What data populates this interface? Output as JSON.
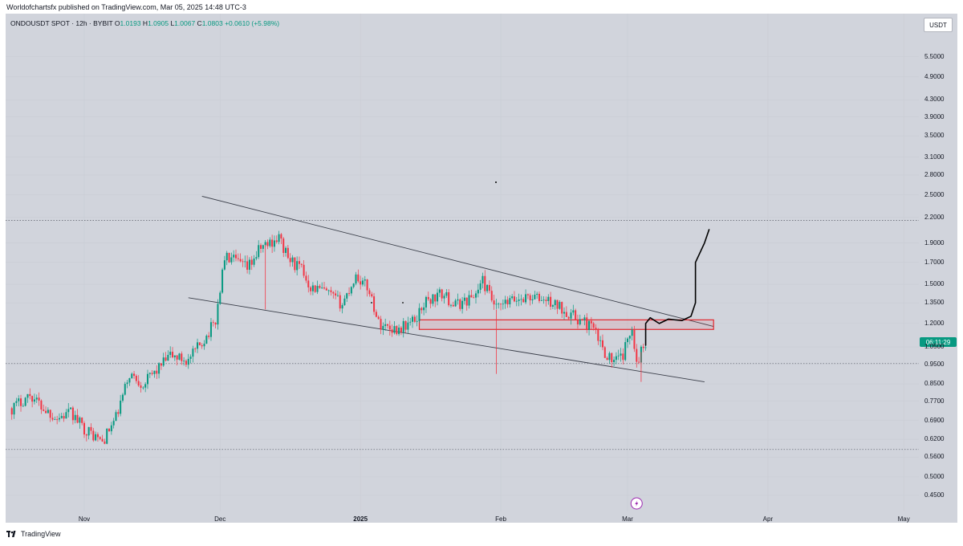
{
  "header": {
    "published": "Worldofchartsfx published on TradingView.com, Mar 05, 2025 14:48 UTC-3"
  },
  "legend": {
    "symbol": "ONDOUSDT SPOT · 12h · BYBIT",
    "open_label": "O",
    "open": "1.0193",
    "high_label": "H",
    "high": "1.0905",
    "low_label": "L",
    "low": "1.0067",
    "close_label": "C",
    "close": "1.0803",
    "change": "+0.0610 (+5.98%)"
  },
  "currency": "USDT",
  "countdown": "06:11:29",
  "footer": {
    "brand": "TradingView"
  },
  "colors": {
    "up": "#089981",
    "down": "#f23645",
    "background": "#d1d4dc",
    "zone": "#e2272e"
  },
  "chart_data": {
    "type": "candlestick",
    "title": "ONDOUSDT SPOT · 12h · BYBIT",
    "y_scale": "log",
    "y_tick_labels": [
      "5.5000",
      "4.9000",
      "4.3000",
      "3.9000",
      "3.5000",
      "3.1000",
      "2.8000",
      "2.5000",
      "2.2000",
      "1.9000",
      "1.7000",
      "1.5000",
      "1.3500",
      "1.2000",
      "1.0500",
      "0.9500",
      "0.8500",
      "0.7700",
      "0.6900",
      "0.6200",
      "0.5600",
      "0.5000",
      "0.4500"
    ],
    "x_tick_labels": [
      {
        "label": "Nov",
        "bold": false
      },
      {
        "label": "Dec",
        "bold": false
      },
      {
        "label": "2025",
        "bold": true
      },
      {
        "label": "Feb",
        "bold": false
      },
      {
        "label": "Mar",
        "bold": false
      },
      {
        "label": "Apr",
        "bold": false
      },
      {
        "label": "May",
        "bold": false
      }
    ],
    "x_range": [
      "2024-10-16",
      "2025-05-06"
    ],
    "ylim": [
      0.43,
      6.3
    ],
    "price_path": [
      [
        "2024-10-16",
        0.74
      ],
      [
        "2024-10-20",
        0.8
      ],
      [
        "2024-10-23",
        0.74
      ],
      [
        "2024-10-26",
        0.7
      ],
      [
        "2024-10-29",
        0.72
      ],
      [
        "2024-11-01",
        0.66
      ],
      [
        "2024-11-05",
        0.61
      ],
      [
        "2024-11-08",
        0.7
      ],
      [
        "2024-11-11",
        0.9
      ],
      [
        "2024-11-14",
        0.85
      ],
      [
        "2024-11-17",
        0.92
      ],
      [
        "2024-11-20",
        1.0
      ],
      [
        "2024-11-24",
        0.97
      ],
      [
        "2024-11-28",
        1.12
      ],
      [
        "2024-11-30",
        1.22
      ],
      [
        "2024-12-02",
        1.75
      ],
      [
        "2024-12-04",
        1.72
      ],
      [
        "2024-12-07",
        1.64
      ],
      [
        "2024-12-10",
        1.85
      ],
      [
        "2024-12-14",
        1.96
      ],
      [
        "2024-12-16",
        1.74
      ],
      [
        "2024-12-19",
        1.63
      ],
      [
        "2024-12-21",
        1.48
      ],
      [
        "2024-12-24",
        1.44
      ],
      [
        "2024-12-28",
        1.34
      ],
      [
        "2024-12-31",
        1.58
      ],
      [
        "2025-01-03",
        1.45
      ],
      [
        "2025-01-05",
        1.2
      ],
      [
        "2025-01-09",
        1.16
      ],
      [
        "2025-01-13",
        1.22
      ],
      [
        "2025-01-15",
        1.35
      ],
      [
        "2025-01-19",
        1.42
      ],
      [
        "2025-01-22",
        1.33
      ],
      [
        "2025-01-26",
        1.4
      ],
      [
        "2025-01-28",
        1.53
      ],
      [
        "2025-01-31",
        1.3
      ],
      [
        "2025-02-03",
        1.36
      ],
      [
        "2025-02-07",
        1.4
      ],
      [
        "2025-02-11",
        1.37
      ],
      [
        "2025-02-15",
        1.3
      ],
      [
        "2025-02-18",
        1.23
      ],
      [
        "2025-02-21",
        1.18
      ],
      [
        "2025-02-24",
        1.02
      ],
      [
        "2025-02-26",
        0.96
      ],
      [
        "2025-02-28",
        1.0
      ],
      [
        "2025-03-02",
        1.19
      ],
      [
        "2025-03-03",
        0.96
      ],
      [
        "2025-03-04",
        1.02
      ],
      [
        "2025-03-05",
        1.08
      ]
    ],
    "spike_lows": [
      [
        "2025-01-31",
        0.9
      ],
      [
        "2024-12-11",
        1.3
      ],
      [
        "2025-03-04",
        0.86
      ]
    ],
    "annotations": [
      {
        "kind": "trendline",
        "from": [
          "2024-11-27",
          2.48
        ],
        "to": [
          "2025-03-20",
          1.18
        ]
      },
      {
        "kind": "trendline",
        "from": [
          "2024-11-24",
          1.39
        ],
        "to": [
          "2025-03-18",
          0.86
        ]
      },
      {
        "kind": "rectangle",
        "x": [
          "2025-01-14",
          "2025-03-20"
        ],
        "y": [
          1.16,
          1.225
        ]
      },
      {
        "kind": "dotted_hline",
        "y": 2.16
      },
      {
        "kind": "dotted_hline",
        "y": 0.955
      },
      {
        "kind": "dotted_hline",
        "y": 0.585
      },
      {
        "kind": "projection",
        "points": [
          [
            "2025-03-05",
            1.06
          ],
          [
            "2025-03-05",
            1.2
          ],
          [
            "2025-03-06",
            1.24
          ],
          [
            "2025-03-08",
            1.2
          ],
          [
            "2025-03-10",
            1.23
          ],
          [
            "2025-03-13",
            1.22
          ],
          [
            "2025-03-15",
            1.25
          ],
          [
            "2025-03-16",
            1.35
          ],
          [
            "2025-03-16",
            1.7
          ],
          [
            "2025-03-18",
            1.9
          ],
          [
            "2025-03-19",
            2.05
          ]
        ]
      }
    ]
  }
}
